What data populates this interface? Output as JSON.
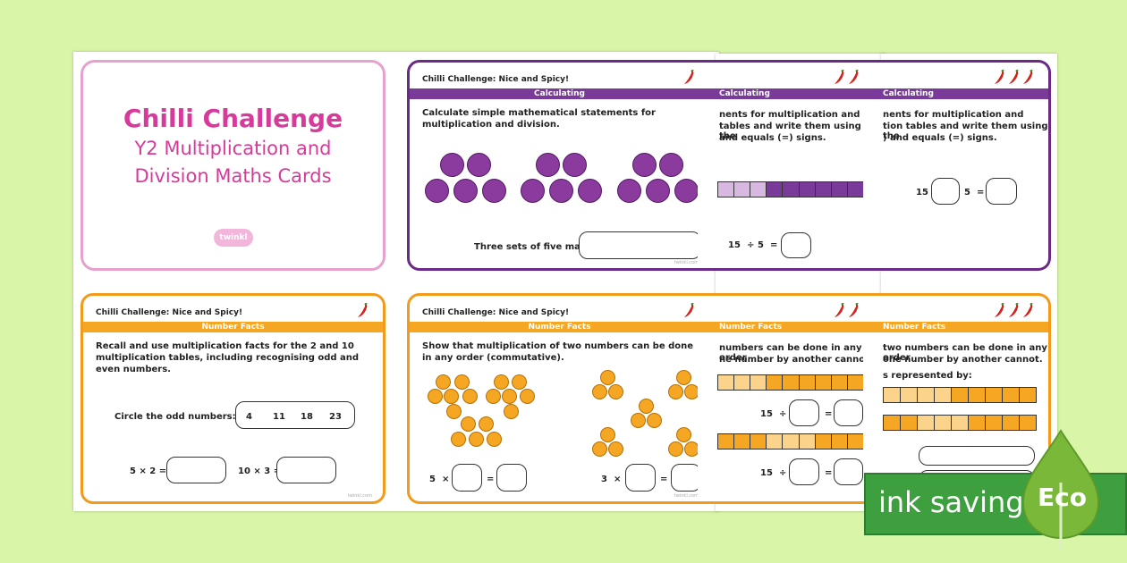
{
  "cover": {
    "title": "Chilli Challenge",
    "subtitle_line1": "Y2 Multiplication and",
    "subtitle_line2": "Division Maths Cards",
    "logo": "twinkl"
  },
  "card1": {
    "title": "Chilli Challenge: Nice and Spicy!",
    "band": "Calculating",
    "desc": "Calculate simple mathematical statements for multiplication and division.",
    "prompt": "Three sets of five makes"
  },
  "card2": {
    "band": "Calculating",
    "desc_line1": "nents for multiplication and",
    "desc_line2": "tables and write them using the",
    "desc_line3": "and equals (=) signs.",
    "eq_a": "15",
    "eq_op": "÷",
    "eq_b": "5",
    "eq_eq": "="
  },
  "card3": {
    "band": "Calculating",
    "desc_line1": "nents for multiplication and",
    "desc_line2": "tion tables and write them using the",
    "desc_line3": ") and equals (=) signs.",
    "eq_a": "15",
    "eq_b": "5",
    "eq_eq": "="
  },
  "card4": {
    "title": "Chilli Challenge: Nice and Spicy!",
    "band": "Number Facts",
    "desc": "Recall and use multiplication facts for the 2 and 10 multiplication tables, including recognising odd and even numbers.",
    "prompt": "Circle the odd numbers:",
    "numbers": [
      "4",
      "11",
      "18",
      "23"
    ],
    "eq1": "5 × 2 =",
    "eq2": "10 × 3 ="
  },
  "card5": {
    "title": "Chilli Challenge: Nice and Spicy!",
    "band": "Number Facts",
    "desc": "Show that multiplication of two numbers can be done in any order (commutative).",
    "eq1_a": "5",
    "eq1_op": "×",
    "eq1_eq": "=",
    "eq2_a": "3",
    "eq2_op": "×",
    "eq2_eq": "="
  },
  "card6": {
    "band": "Number Facts",
    "desc_line1": "numbers can be done in any order",
    "desc_line2": "ne number by another cannot.",
    "eq1_a": "15",
    "eq1_op": "÷",
    "eq1_eq": "=",
    "eq2_a": "15",
    "eq2_op": "÷",
    "eq2_eq": "="
  },
  "card7": {
    "band": "Number Facts",
    "desc_line1": "two numbers can be done in any order",
    "desc_line2": "one number by another cannot.",
    "desc_line3": "s represented by:"
  },
  "badge": {
    "text": "ink saving",
    "eco": "Eco"
  },
  "colors": {
    "purple": "#6a2a86",
    "orange": "#f29a1c",
    "pink": "#e6a2cc",
    "background": "#d9f5a8",
    "eco_green": "#3d9f3d"
  }
}
